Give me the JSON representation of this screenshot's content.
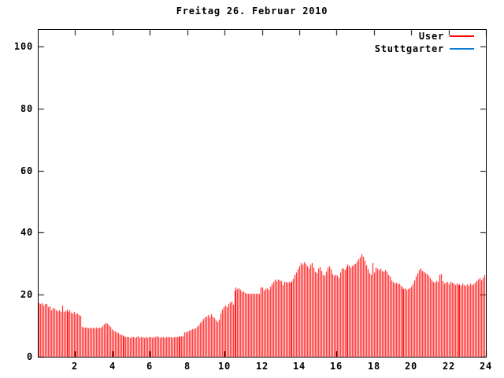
{
  "title": "Freitag 26. Februar 2010",
  "colors": {
    "background": "#ffffff",
    "axis": "#000000",
    "text": "#000000",
    "user_red": "#ff0000",
    "stuttgarter_blue": "#0b7ad1"
  },
  "legend": {
    "position": "top-right-inside",
    "items": [
      {
        "label": "User",
        "color": "#ff0000"
      },
      {
        "label": "Stuttgarter",
        "color": "#0b7ad1"
      }
    ]
  },
  "chart_data": {
    "type": "bar",
    "style": "impulses",
    "title": "Freitag 26. Februar 2010",
    "xlabel": "",
    "ylabel": "",
    "x_unit": "hour of day",
    "xlim": [
      0,
      24
    ],
    "ylim": [
      0,
      100
    ],
    "grid": false,
    "x_tick_values": [
      2,
      4,
      6,
      8,
      10,
      12,
      14,
      16,
      18,
      20,
      22,
      24
    ],
    "x_tick_labels": [
      "2",
      "4",
      "6",
      "8",
      "10",
      "12",
      "14",
      "16",
      "18",
      "20",
      "22",
      "24"
    ],
    "y_tick_values": [
      0,
      20,
      40,
      60,
      80,
      100
    ],
    "y_tick_labels": [
      "0",
      "20",
      "40",
      "60",
      "80",
      "100"
    ],
    "series": [
      {
        "name": "User",
        "color": "#ff0000",
        "x_start": 0.042,
        "x_step": 0.0833,
        "values": [
          17.2,
          17.0,
          17.3,
          16.4,
          17.1,
          16.9,
          15.9,
          16.3,
          15.1,
          15.8,
          15.6,
          14.9,
          14.6,
          14.9,
          14.4,
          16.4,
          14.5,
          14.7,
          15.3,
          14.4,
          14.9,
          14.3,
          13.9,
          14.4,
          13.7,
          13.9,
          13.5,
          13.1,
          9.6,
          9.4,
          9.3,
          9.4,
          9.2,
          9.3,
          9.1,
          9.3,
          9.2,
          9.4,
          9.1,
          9.3,
          9.5,
          9.9,
          10.5,
          10.9,
          10.7,
          10.2,
          9.6,
          8.9,
          8.4,
          8.1,
          7.8,
          7.5,
          7.2,
          7.0,
          6.8,
          6.6,
          6.4,
          6.3,
          6.4,
          6.2,
          6.3,
          6.4,
          6.2,
          6.3,
          6.5,
          6.2,
          6.3,
          6.4,
          6.2,
          6.3,
          6.2,
          6.4,
          6.3,
          6.2,
          6.4,
          6.3,
          6.5,
          6.3,
          6.2,
          6.4,
          6.3,
          6.2,
          6.3,
          6.4,
          6.3,
          6.4,
          6.2,
          6.3,
          6.4,
          6.3,
          6.5,
          6.4,
          6.6,
          6.5,
          7.9,
          7.8,
          8.0,
          8.3,
          8.7,
          9.0,
          8.8,
          9.2,
          9.6,
          10.2,
          10.9,
          11.5,
          12.2,
          12.8,
          13.0,
          13.4,
          12.7,
          13.7,
          13.0,
          12.4,
          11.6,
          11.2,
          11.9,
          13.9,
          15.2,
          16.0,
          16.4,
          16.0,
          16.9,
          17.4,
          17.7,
          16.8,
          21.4,
          22.4,
          21.9,
          22.0,
          21.5,
          20.9,
          21.0,
          20.6,
          20.3,
          20.4,
          20.2,
          20.4,
          20.3,
          20.2,
          20.4,
          20.3,
          20.2,
          22.4,
          22.3,
          21.2,
          21.8,
          22.2,
          21.7,
          22.5,
          23.4,
          24.2,
          24.8,
          24.3,
          24.9,
          24.5,
          24.4,
          23.0,
          24.0,
          24.2,
          23.8,
          24.1,
          23.9,
          24.3,
          25.1,
          26.4,
          27.1,
          28.1,
          29.3,
          30.2,
          29.8,
          30.4,
          29.9,
          29.1,
          28.3,
          29.6,
          30.1,
          28.7,
          27.3,
          27.0,
          28.4,
          28.9,
          27.7,
          26.3,
          26.1,
          27.4,
          28.8,
          29.1,
          28.1,
          26.6,
          26.2,
          26.4,
          26.1,
          25.5,
          27.1,
          28.3,
          28.5,
          27.9,
          28.9,
          29.7,
          29.4,
          28.6,
          29.2,
          29.6,
          29.9,
          30.7,
          31.5,
          32.1,
          32.9,
          32.3,
          30.9,
          29.5,
          28.1,
          26.9,
          26.3,
          30.3,
          27.1,
          28.7,
          28.3,
          27.9,
          28.5,
          27.7,
          27.3,
          28.0,
          27.5,
          26.5,
          25.9,
          24.7,
          24.1,
          23.5,
          23.9,
          23.3,
          23.6,
          22.9,
          22.4,
          21.9,
          22.1,
          21.7,
          21.9,
          22.2,
          22.5,
          23.3,
          24.7,
          25.8,
          26.9,
          27.9,
          28.3,
          27.7,
          27.3,
          27.0,
          26.6,
          26.1,
          25.3,
          24.5,
          24.1,
          23.9,
          24.3,
          24.0,
          26.5,
          26.7,
          24.3,
          23.7,
          23.9,
          24.1,
          23.3,
          24.0,
          23.9,
          23.5,
          23.1,
          23.6,
          23.0,
          23.3,
          22.9,
          23.5,
          23.1,
          22.9,
          23.3,
          22.9,
          23.5,
          23.1,
          23.4,
          23.8,
          24.3,
          24.9,
          25.3,
          24.7,
          25.5,
          26.4
        ]
      },
      {
        "name": "Stuttgarter",
        "color": "#0b7ad1",
        "values": []
      }
    ]
  }
}
